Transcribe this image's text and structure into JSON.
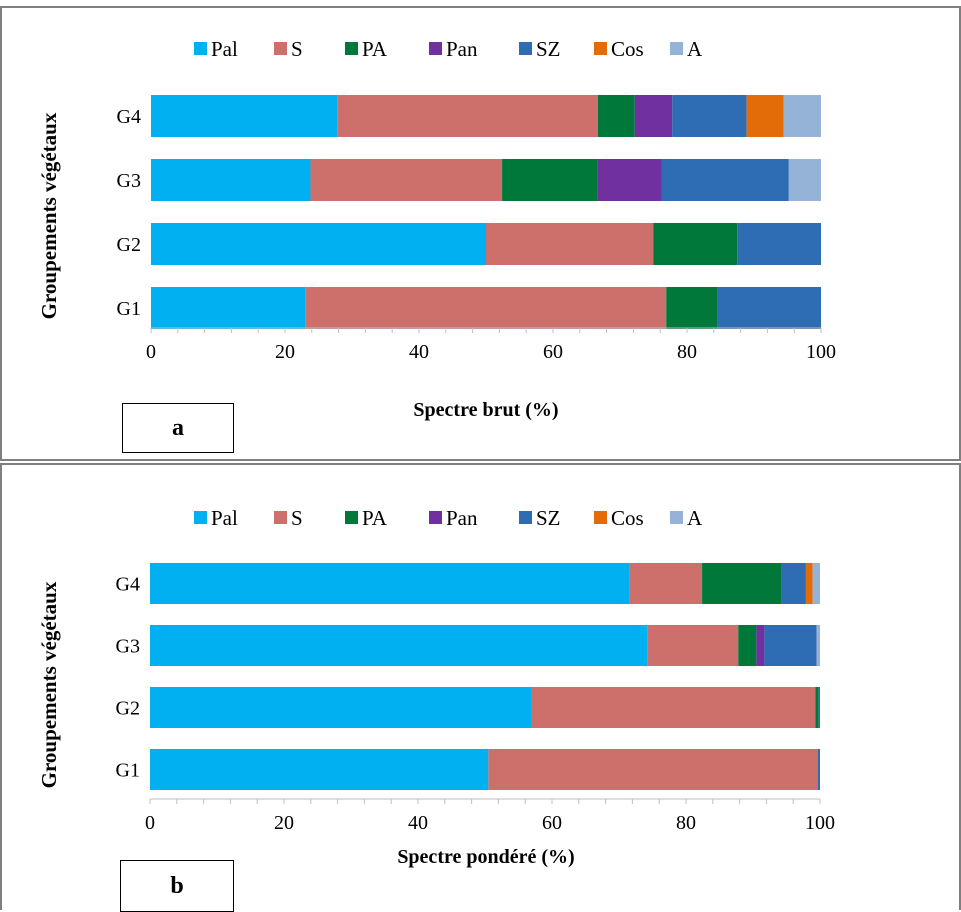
{
  "legend": [
    {
      "name": "Pal",
      "color": "#00B0F0"
    },
    {
      "name": "S",
      "color": "#CD706C"
    },
    {
      "name": "PA",
      "color": "#00783A"
    },
    {
      "name": "Pan",
      "color": "#7030A0"
    },
    {
      "name": "SZ",
      "color": "#2E6DB4"
    },
    {
      "name": "Cos",
      "color": "#E36C09"
    },
    {
      "name": "A",
      "color": "#95B3D7"
    }
  ],
  "chart_data": [
    {
      "type": "bar",
      "orientation": "horizontal",
      "stacked": true,
      "panel_label": "a",
      "xlabel": "Spectre brut  (%)",
      "ylabel": "Groupements  végétaux",
      "xlim": [
        0,
        100
      ],
      "xticks": [
        "0",
        "20",
        "40",
        "60",
        "80",
        "100"
      ],
      "categories": [
        "G4",
        "G3",
        "G2",
        "G1"
      ],
      "series": [
        {
          "name": "Pal",
          "values": [
            27.8,
            23.8,
            50.0,
            23.1
          ]
        },
        {
          "name": "S",
          "values": [
            38.9,
            28.6,
            25.0,
            53.8
          ]
        },
        {
          "name": "PA",
          "values": [
            5.5,
            14.3,
            12.5,
            7.7
          ]
        },
        {
          "name": "Pan",
          "values": [
            5.6,
            9.5,
            0,
            0
          ]
        },
        {
          "name": "SZ",
          "values": [
            11.1,
            19.0,
            12.5,
            15.4
          ]
        },
        {
          "name": "Cos",
          "values": [
            5.5,
            0,
            0,
            0
          ]
        },
        {
          "name": "A",
          "values": [
            5.6,
            4.8,
            0,
            0
          ]
        }
      ],
      "legend_position": "top",
      "grid": false
    },
    {
      "type": "bar",
      "orientation": "horizontal",
      "stacked": true,
      "panel_label": "b",
      "xlabel": "Spectre pondéré (%)",
      "ylabel": "Groupements  végétaux",
      "xlim": [
        0,
        100
      ],
      "xticks": [
        "0",
        "20",
        "40",
        "60",
        "80",
        "100"
      ],
      "categories": [
        "G4",
        "G3",
        "G2",
        "G1"
      ],
      "series": [
        {
          "name": "Pal",
          "values": [
            71.5,
            74.2,
            57.0,
            50.5
          ]
        },
        {
          "name": "S",
          "values": [
            10.9,
            13.6,
            42.3,
            49.2
          ]
        },
        {
          "name": "PA",
          "values": [
            11.9,
            2.7,
            0.5,
            0
          ]
        },
        {
          "name": "Pan",
          "values": [
            0,
            1.2,
            0,
            0
          ]
        },
        {
          "name": "SZ",
          "values": [
            3.6,
            7.8,
            0.2,
            0.3
          ]
        },
        {
          "name": "Cos",
          "values": [
            1.0,
            0,
            0,
            0
          ]
        },
        {
          "name": "A",
          "values": [
            1.1,
            0.5,
            0,
            0
          ]
        }
      ],
      "legend_position": "top",
      "grid": false
    }
  ]
}
